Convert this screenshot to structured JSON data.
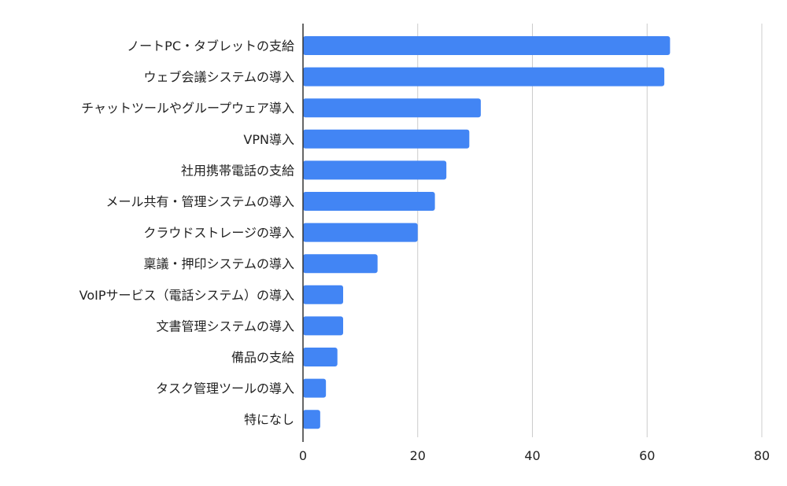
{
  "chart_data": {
    "type": "bar",
    "orientation": "horizontal",
    "title": "",
    "xlabel": "",
    "ylabel": "",
    "xlim": [
      0,
      80
    ],
    "xticks": [
      0,
      20,
      40,
      60,
      80
    ],
    "grid": "vertical",
    "legend": "none",
    "bar_color": "#4285f4",
    "categories": [
      "ノートPC・タブレットの支給",
      "ウェブ会議システムの導入",
      "チャットツールやグループウェア導入",
      "VPN導入",
      "社用携帯電話の支給",
      "メール共有・管理システムの導入",
      "クラウドストレージの導入",
      "稟議・押印システムの導入",
      "VoIPサービス（電話システム）の導入",
      "文書管理システムの導入",
      "備品の支給",
      "タスク管理ツールの導入",
      "特になし"
    ],
    "values": [
      64,
      63,
      31,
      29,
      25,
      23,
      20,
      13,
      7,
      7,
      6,
      4,
      3
    ]
  }
}
